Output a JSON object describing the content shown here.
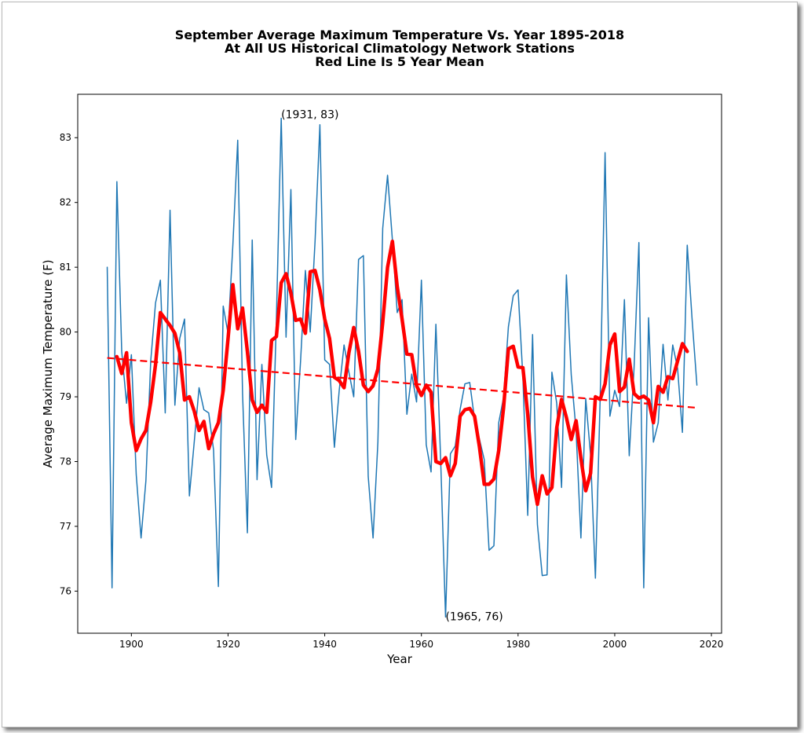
{
  "chart_data": {
    "type": "line",
    "title_lines": [
      "September Average Maximum Temperature Vs. Year 1895-2018",
      "At All US Historical Climatology Network Stations",
      "Red Line Is 5 Year Mean"
    ],
    "xlabel": "Year",
    "ylabel": "Average Maximum Temperature (F)",
    "xlim": [
      1888.9,
      2022.1
    ],
    "ylim": [
      75.35,
      83.67
    ],
    "xticks": [
      1900,
      1920,
      1940,
      1960,
      1980,
      2000,
      2020
    ],
    "yticks": [
      76,
      77,
      78,
      79,
      80,
      81,
      82,
      83
    ],
    "grid": false,
    "annotations": [
      {
        "text": "(1931, 83)",
        "x": 1931,
        "y": 83.3
      },
      {
        "text": "(1965, 76)",
        "x": 1965,
        "y": 75.55
      }
    ],
    "series": [
      {
        "color": "#1f77b4",
        "line_style": "solid",
        "x": [
          1895,
          1896,
          1897,
          1898,
          1899,
          1900,
          1901,
          1902,
          1903,
          1904,
          1905,
          1906,
          1907,
          1908,
          1909,
          1910,
          1911,
          1912,
          1913,
          1914,
          1915,
          1916,
          1917,
          1918,
          1919,
          1920,
          1921,
          1922,
          1923,
          1924,
          1925,
          1926,
          1927,
          1928,
          1929,
          1930,
          1931,
          1932,
          1933,
          1934,
          1935,
          1936,
          1937,
          1938,
          1939,
          1940,
          1941,
          1942,
          1943,
          1944,
          1945,
          1946,
          1947,
          1948,
          1949,
          1950,
          1951,
          1952,
          1953,
          1954,
          1955,
          1956,
          1957,
          1958,
          1959,
          1960,
          1961,
          1962,
          1963,
          1964,
          1965,
          1966,
          1967,
          1968,
          1969,
          1970,
          1971,
          1972,
          1973,
          1974,
          1975,
          1976,
          1977,
          1978,
          1979,
          1980,
          1981,
          1982,
          1983,
          1984,
          1985,
          1986,
          1987,
          1988,
          1989,
          1990,
          1991,
          1992,
          1993,
          1994,
          1995,
          1996,
          1997,
          1998,
          1999,
          2000,
          2001,
          2002,
          2003,
          2004,
          2005,
          2006,
          2007,
          2008,
          2009,
          2010,
          2011,
          2012,
          2013,
          2014,
          2015,
          2016,
          2017
        ],
        "y": [
          81.0,
          76.05,
          82.32,
          79.7,
          78.9,
          79.65,
          77.8,
          76.82,
          77.7,
          79.55,
          80.45,
          80.8,
          78.75,
          81.88,
          78.87,
          79.9,
          80.2,
          77.47,
          78.3,
          79.14,
          78.8,
          78.75,
          78.18,
          76.07,
          80.4,
          79.98,
          81.35,
          82.96,
          79.05,
          76.9,
          81.42,
          77.72,
          79.5,
          78.1,
          77.6,
          80.2,
          83.3,
          79.92,
          82.2,
          78.34,
          79.55,
          80.95,
          80.0,
          81.4,
          83.2,
          79.57,
          79.5,
          78.22,
          79.1,
          79.8,
          79.38,
          79.0,
          81.12,
          81.18,
          77.77,
          76.82,
          78.3,
          81.6,
          82.42,
          81.42,
          80.3,
          80.5,
          78.73,
          79.35,
          78.92,
          80.8,
          78.26,
          77.84,
          80.12,
          77.99,
          75.6,
          78.12,
          78.24,
          78.8,
          79.2,
          79.22,
          78.65,
          78.35,
          78.03,
          76.63,
          76.7,
          78.6,
          78.99,
          80.08,
          80.56,
          80.65,
          79.3,
          77.17,
          79.96,
          77.03,
          76.24,
          76.25,
          79.38,
          78.9,
          77.6,
          80.88,
          79.34,
          78.48,
          76.82,
          78.97,
          78.1,
          76.2,
          79.02,
          82.77,
          78.7,
          79.1,
          78.85,
          80.5,
          78.09,
          79.45,
          81.38,
          76.05,
          80.22,
          78.3,
          78.6,
          79.81,
          78.95,
          79.8,
          79.44,
          78.45,
          81.34,
          80.2,
          79.18
        ]
      },
      {
        "color": "#ff0000",
        "line_style": "solid",
        "x": [
          1897,
          1898,
          1899,
          1900,
          1901,
          1902,
          1903,
          1904,
          1905,
          1906,
          1907,
          1908,
          1909,
          1910,
          1911,
          1912,
          1913,
          1914,
          1915,
          1916,
          1917,
          1918,
          1919,
          1920,
          1921,
          1922,
          1923,
          1924,
          1925,
          1926,
          1927,
          1928,
          1929,
          1930,
          1931,
          1932,
          1933,
          1934,
          1935,
          1936,
          1937,
          1938,
          1939,
          1940,
          1941,
          1942,
          1943,
          1944,
          1945,
          1946,
          1947,
          1948,
          1949,
          1950,
          1951,
          1952,
          1953,
          1954,
          1955,
          1956,
          1957,
          1958,
          1959,
          1960,
          1961,
          1962,
          1963,
          1964,
          1965,
          1966,
          1967,
          1968,
          1969,
          1970,
          1971,
          1972,
          1973,
          1974,
          1975,
          1976,
          1977,
          1978,
          1979,
          1980,
          1981,
          1982,
          1983,
          1984,
          1985,
          1986,
          1987,
          1988,
          1989,
          1990,
          1991,
          1992,
          1993,
          1994,
          1995,
          1996,
          1997,
          1998,
          1999,
          2000,
          2001,
          2002,
          2003,
          2004,
          2005,
          2006,
          2007,
          2008,
          2009,
          2010,
          2011,
          2012,
          2013,
          2014,
          2015
        ],
        "y": [
          79.62,
          79.36,
          79.68,
          78.6,
          78.17,
          78.35,
          78.48,
          78.92,
          79.5,
          80.3,
          80.2,
          80.1,
          79.98,
          79.68,
          78.95,
          79.0,
          78.78,
          78.48,
          78.62,
          78.2,
          78.43,
          78.6,
          79.1,
          79.9,
          80.73,
          80.05,
          80.37,
          79.7,
          78.95,
          78.76,
          78.87,
          78.76,
          79.87,
          79.93,
          80.76,
          80.9,
          80.6,
          80.18,
          80.2,
          79.98,
          80.93,
          80.95,
          80.65,
          80.2,
          79.9,
          79.3,
          79.25,
          79.14,
          79.68,
          80.07,
          79.7,
          79.18,
          79.08,
          79.17,
          79.43,
          80.15,
          81.0,
          81.4,
          80.7,
          80.2,
          79.66,
          79.65,
          79.17,
          79.02,
          79.18,
          79.07,
          78.0,
          77.97,
          78.06,
          77.78,
          77.97,
          78.7,
          78.8,
          78.82,
          78.7,
          78.23,
          77.65,
          77.65,
          77.73,
          78.17,
          78.83,
          79.74,
          79.78,
          79.46,
          79.45,
          78.73,
          77.76,
          77.34,
          77.78,
          77.5,
          77.6,
          78.52,
          78.96,
          78.68,
          78.34,
          78.63,
          78.05,
          77.55,
          77.82,
          79.0,
          78.96,
          79.2,
          79.8,
          79.97,
          79.08,
          79.15,
          79.58,
          79.05,
          78.98,
          79.01,
          78.95,
          78.6,
          79.16,
          79.07,
          79.31,
          79.28,
          79.55,
          79.82,
          79.7
        ]
      },
      {
        "color": "#ff0000",
        "line_style": "dashed",
        "x": [
          1895,
          2017
        ],
        "y": [
          79.6,
          78.83
        ]
      }
    ]
  }
}
